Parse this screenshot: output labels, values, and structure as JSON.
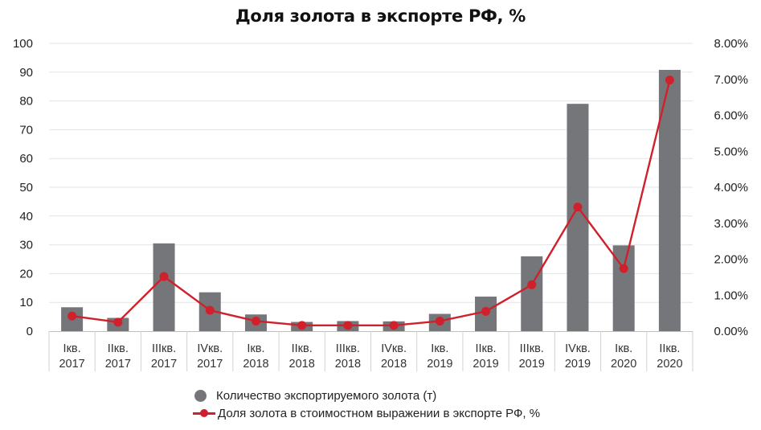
{
  "chart_data": {
    "type": "bar",
    "title": "Доля золота в экспорте РФ, %",
    "categories": [
      [
        "Iкв.",
        "2017"
      ],
      [
        "IIкв.",
        "2017"
      ],
      [
        "IIIкв.",
        "2017"
      ],
      [
        "IVкв.",
        "2017"
      ],
      [
        "Iкв.",
        "2018"
      ],
      [
        "IIкв.",
        "2018"
      ],
      [
        "IIIкв.",
        "2018"
      ],
      [
        "IVкв.",
        "2018"
      ],
      [
        "Iкв.",
        "2019"
      ],
      [
        "IIкв.",
        "2019"
      ],
      [
        "IIIкв.",
        "2019"
      ],
      [
        "IVкв.",
        "2019"
      ],
      [
        "Iкв.",
        "2020"
      ],
      [
        "IIкв.",
        "2020"
      ]
    ],
    "series": [
      {
        "name": "Количество экспортируемого золота (т)",
        "type": "bar",
        "axis": "left",
        "color": "#75767a",
        "values": [
          8.3,
          4.6,
          30.5,
          13.5,
          5.8,
          3.2,
          3.5,
          3.4,
          6.0,
          12.0,
          26.0,
          79.0,
          29.8,
          90.8
        ]
      },
      {
        "name": "Доля золота в стоимостном выражении в экспорте РФ, %",
        "type": "line",
        "axis": "right",
        "color": "#d0202b",
        "values": [
          0.42,
          0.25,
          1.52,
          0.58,
          0.28,
          0.16,
          0.16,
          0.16,
          0.28,
          0.55,
          1.29,
          3.45,
          1.74,
          6.98
        ]
      }
    ],
    "y_left": {
      "min": 0,
      "max": 100,
      "ticks": [
        "0",
        "10",
        "20",
        "30",
        "40",
        "50",
        "60",
        "70",
        "80",
        "90",
        "100"
      ]
    },
    "y_right": {
      "min": 0,
      "max": 8,
      "ticks": [
        "0.00%",
        "1.00%",
        "2.00%",
        "3.00%",
        "4.00%",
        "5.00%",
        "6.00%",
        "7.00%",
        "8.00%"
      ]
    },
    "grid": true,
    "legend_position": "bottom-center"
  }
}
